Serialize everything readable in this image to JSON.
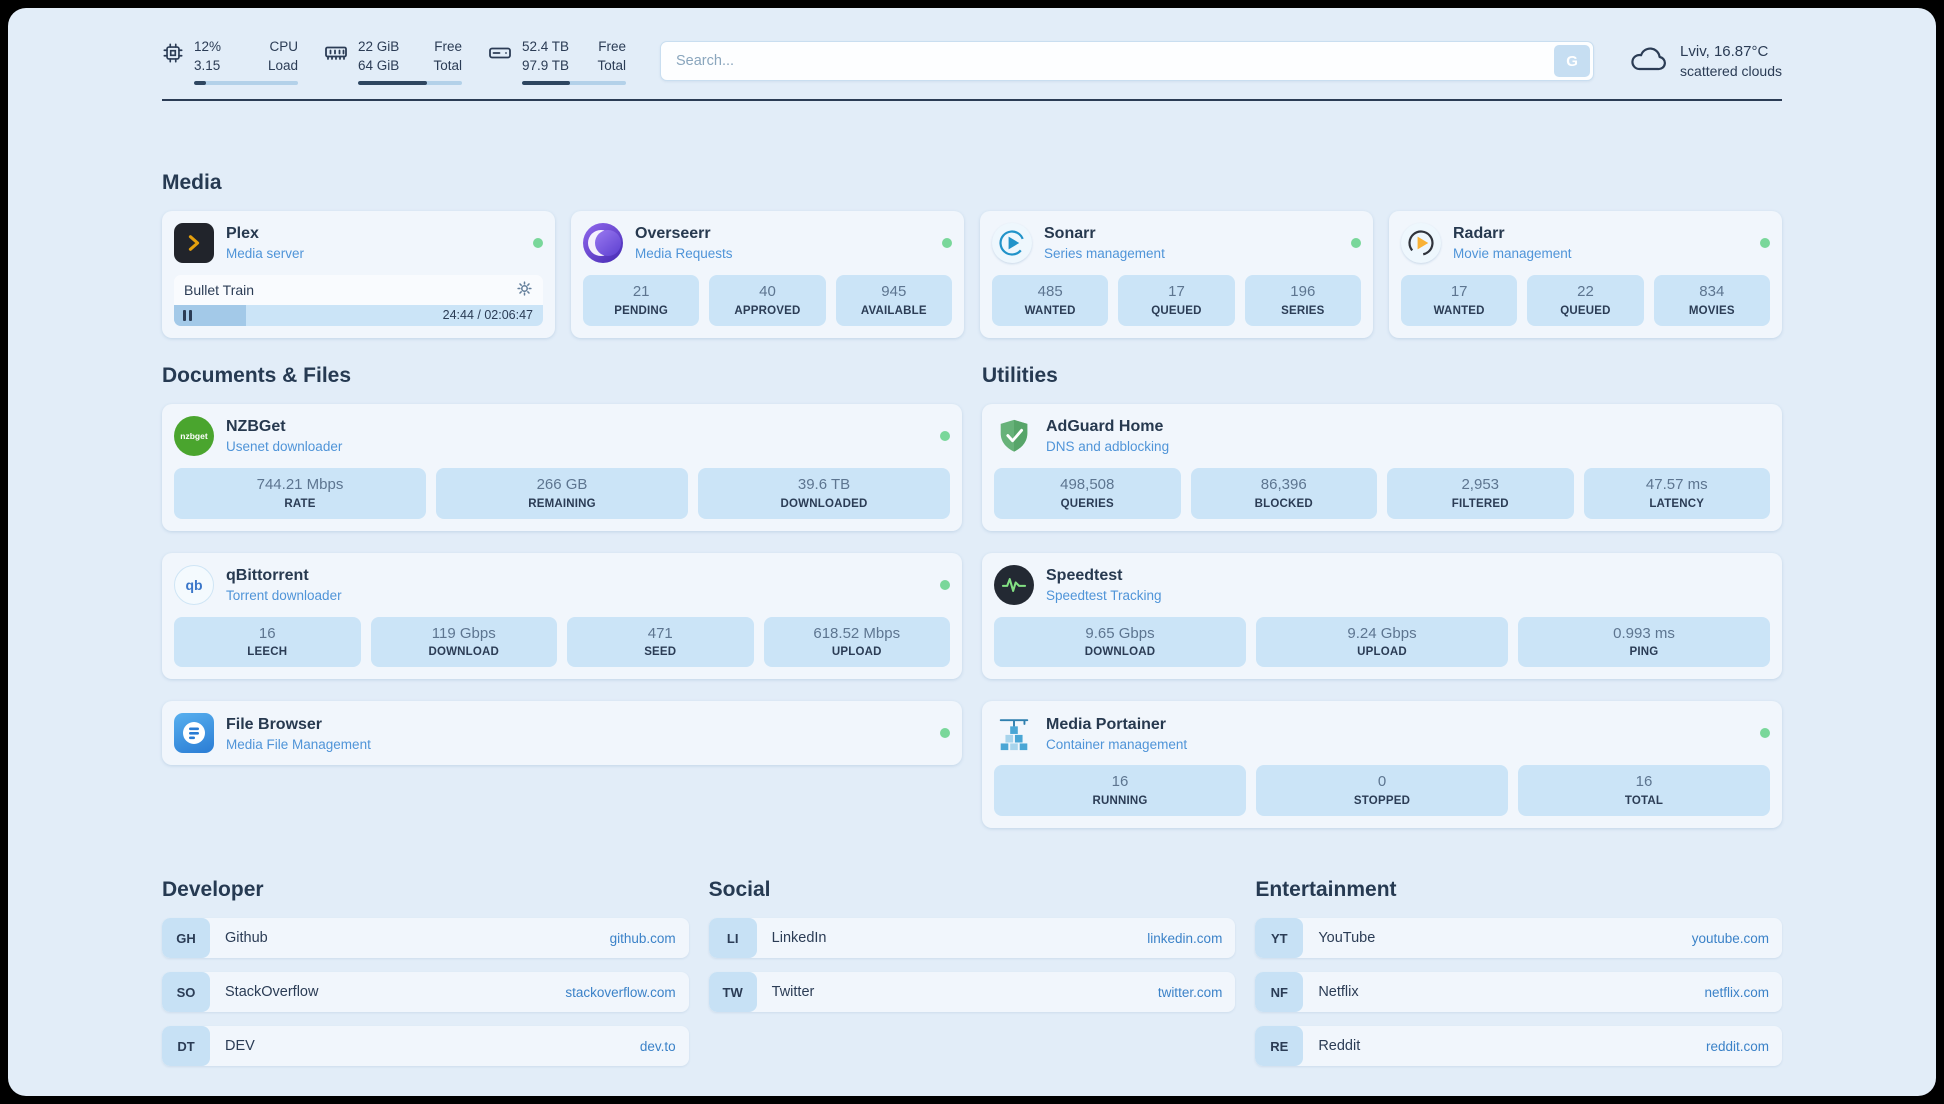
{
  "colors": {
    "status_online": "#79d79a",
    "accent_blue": "#3b82c8",
    "stat_bg": "#cbe4f7",
    "page_bg": "#e2edf8"
  },
  "topbar": {
    "system": [
      {
        "icon": "cpu-icon",
        "value1": "12%",
        "value2": "3.15",
        "label1": "CPU",
        "label2": "Load",
        "percent": 12
      },
      {
        "icon": "memory-icon",
        "value1": "22 GiB",
        "value2": "64 GiB",
        "label1": "Free",
        "label2": "Total",
        "percent": 66
      },
      {
        "icon": "disk-icon",
        "value1": "52.4 TB",
        "value2": "97.9 TB",
        "label1": "Free",
        "label2": "Total",
        "percent": 46
      }
    ],
    "search": {
      "placeholder": "Search...",
      "button_label": "G"
    },
    "weather": {
      "icon": "cloud-icon",
      "location": "Lviv, 16.87°C",
      "condition": "scattered clouds"
    }
  },
  "sections": {
    "media": {
      "title": "Media",
      "cards": [
        {
          "name": "Plex",
          "subtitle": "Media server",
          "icon": "plex-icon",
          "online": true,
          "player": {
            "title": "Bullet Train",
            "time": "24:44 / 02:06:47",
            "progress_percent": 19.5
          }
        },
        {
          "name": "Overseerr",
          "subtitle": "Media Requests",
          "icon": "overseerr-icon",
          "online": true,
          "stats": [
            {
              "value": "21",
              "label": "PENDING"
            },
            {
              "value": "40",
              "label": "APPROVED"
            },
            {
              "value": "945",
              "label": "AVAILABLE"
            }
          ]
        },
        {
          "name": "Sonarr",
          "subtitle": "Series management",
          "icon": "sonarr-icon",
          "online": true,
          "stats": [
            {
              "value": "485",
              "label": "WANTED"
            },
            {
              "value": "17",
              "label": "QUEUED"
            },
            {
              "value": "196",
              "label": "SERIES"
            }
          ]
        },
        {
          "name": "Radarr",
          "subtitle": "Movie management",
          "icon": "radarr-icon",
          "online": true,
          "stats": [
            {
              "value": "17",
              "label": "WANTED"
            },
            {
              "value": "22",
              "label": "QUEUED"
            },
            {
              "value": "834",
              "label": "MOVIES"
            }
          ]
        }
      ]
    },
    "documents": {
      "title": "Documents & Files",
      "cards": [
        {
          "name": "NZBGet",
          "subtitle": "Usenet downloader",
          "icon": "nzbget-icon",
          "online": true,
          "stats": [
            {
              "value": "744.21 Mbps",
              "label": "RATE"
            },
            {
              "value": "266 GB",
              "label": "REMAINING"
            },
            {
              "value": "39.6 TB",
              "label": "DOWNLOADED"
            }
          ]
        },
        {
          "name": "qBittorrent",
          "subtitle": "Torrent downloader",
          "icon": "qbittorrent-icon",
          "online": true,
          "stats": [
            {
              "value": "16",
              "label": "LEECH"
            },
            {
              "value": "119 Gbps",
              "label": "DOWNLOAD"
            },
            {
              "value": "471",
              "label": "SEED"
            },
            {
              "value": "618.52 Mbps",
              "label": "UPLOAD"
            }
          ]
        },
        {
          "name": "File Browser",
          "subtitle": "Media File Management",
          "icon": "filebrowser-icon",
          "online": true,
          "stats": []
        }
      ]
    },
    "utilities": {
      "title": "Utilities",
      "cards": [
        {
          "name": "AdGuard Home",
          "subtitle": "DNS and adblocking",
          "icon": "adguard-icon",
          "online": false,
          "stats": [
            {
              "value": "498,508",
              "label": "QUERIES"
            },
            {
              "value": "86,396",
              "label": "BLOCKED"
            },
            {
              "value": "2,953",
              "label": "FILTERED"
            },
            {
              "value": "47.57 ms",
              "label": "LATENCY"
            }
          ]
        },
        {
          "name": "Speedtest",
          "subtitle": "Speedtest Tracking",
          "icon": "speedtest-icon",
          "online": false,
          "stats": [
            {
              "value": "9.65 Gbps",
              "label": "DOWNLOAD"
            },
            {
              "value": "9.24 Gbps",
              "label": "UPLOAD"
            },
            {
              "value": "0.993 ms",
              "label": "PING"
            }
          ]
        },
        {
          "name": "Media Portainer",
          "subtitle": "Container management",
          "icon": "portainer-icon",
          "online": true,
          "stats": [
            {
              "value": "16",
              "label": "RUNNING"
            },
            {
              "value": "0",
              "label": "STOPPED"
            },
            {
              "value": "16",
              "label": "TOTAL"
            }
          ]
        }
      ]
    }
  },
  "bookmarks": {
    "groups": [
      {
        "title": "Developer",
        "items": [
          {
            "abbr": "GH",
            "name": "Github",
            "link": "github.com"
          },
          {
            "abbr": "SO",
            "name": "StackOverflow",
            "link": "stackoverflow.com"
          },
          {
            "abbr": "DT",
            "name": "DEV",
            "link": "dev.to"
          }
        ]
      },
      {
        "title": "Social",
        "items": [
          {
            "abbr": "LI",
            "name": "LinkedIn",
            "link": "linkedin.com"
          },
          {
            "abbr": "TW",
            "name": "Twitter",
            "link": "twitter.com"
          }
        ]
      },
      {
        "title": "Entertainment",
        "items": [
          {
            "abbr": "YT",
            "name": "YouTube",
            "link": "youtube.com"
          },
          {
            "abbr": "NF",
            "name": "Netflix",
            "link": "netflix.com"
          },
          {
            "abbr": "RE",
            "name": "Reddit",
            "link": "reddit.com"
          }
        ]
      }
    ]
  }
}
